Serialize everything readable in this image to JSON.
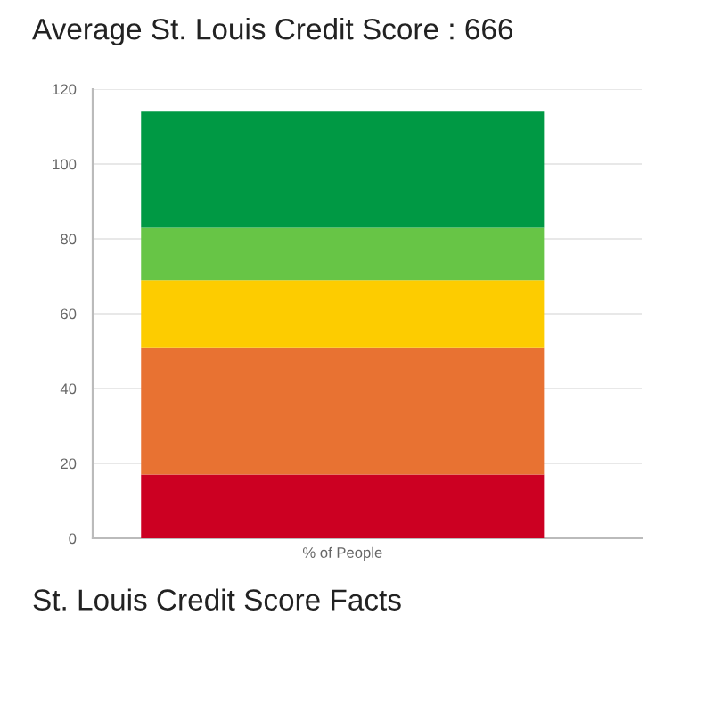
{
  "chart_data": {
    "type": "bar",
    "title": "Average St. Louis Credit Score : 666",
    "categories": [
      "% of People"
    ],
    "stacked": true,
    "series": [
      {
        "color": "#cc0022",
        "values": [
          17
        ]
      },
      {
        "color": "#e87232",
        "values": [
          34
        ]
      },
      {
        "color": "#fdcc00",
        "values": [
          18
        ]
      },
      {
        "color": "#67c546",
        "values": [
          14
        ]
      },
      {
        "color": "#009944",
        "values": [
          31
        ]
      }
    ],
    "ylim": [
      0,
      120
    ],
    "yticks": [
      0,
      20,
      40,
      60,
      80,
      100,
      120
    ],
    "grid": "y",
    "annotations": [
      "St. Louis Credit Score Facts"
    ]
  }
}
